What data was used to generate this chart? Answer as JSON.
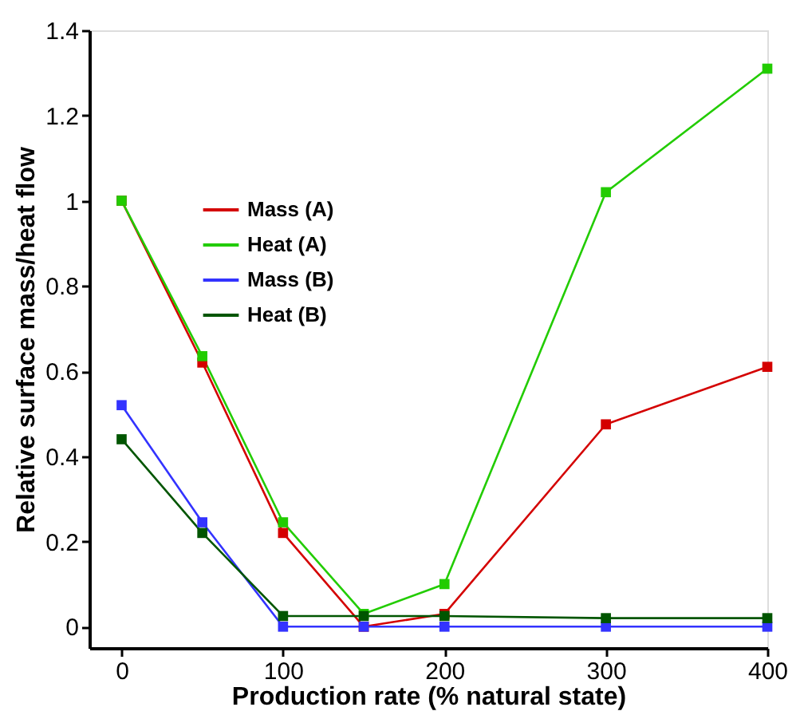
{
  "chart_data": {
    "type": "line",
    "xlabel": "Production rate (% natural state)",
    "ylabel": "Relative surface mass/heat flow",
    "x": [
      0,
      50,
      100,
      150,
      200,
      300,
      400
    ],
    "series": [
      {
        "name": "Mass (A)",
        "color": "#d40000",
        "values": [
          1,
          0.62,
          0.22,
          0,
          0.03,
          0.475,
          0.61
        ]
      },
      {
        "name": "Heat (A)",
        "color": "#22cc00",
        "values": [
          1,
          0.635,
          0.245,
          0.03,
          0.1,
          1.02,
          1.31
        ]
      },
      {
        "name": "Mass (B)",
        "color": "#3333ff",
        "values": [
          0.52,
          0.245,
          0,
          0,
          0,
          0,
          0
        ]
      },
      {
        "name": "Heat (B)",
        "color": "#005500",
        "values": [
          0.44,
          0.22,
          0.025,
          0.025,
          0.025,
          0.02,
          0.02
        ]
      }
    ],
    "xlim": [
      -20,
      400
    ],
    "ylim": [
      -0.05,
      1.4
    ],
    "xticks": [
      0,
      100,
      200,
      300,
      400
    ],
    "yticks": [
      0,
      0.2,
      0.4,
      0.6,
      0.8,
      {
        "value": 1,
        "label": "1"
      },
      1.2,
      1.4
    ],
    "marker": "square",
    "line_style": "solid",
    "grid": false,
    "legend": "top left"
  }
}
